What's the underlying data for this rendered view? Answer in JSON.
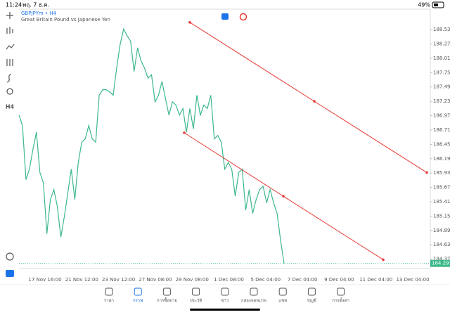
{
  "status_bar": {
    "time": "11:24",
    "date": "พฤ. 7 ธ.ค.",
    "battery": "49%"
  },
  "chart": {
    "type": "line",
    "symbol": "GBPJPYm • H4",
    "description": "Great Britain Pound vs Japanese Yen",
    "side_label": "H4",
    "color": "#3cb88a",
    "ylim": [
      184.2,
      188.9
    ],
    "yticks": [
      {
        "value": 188.53,
        "label": "188.530"
      },
      {
        "value": 188.27,
        "label": "188.270"
      },
      {
        "value": 188.01,
        "label": "188.010"
      },
      {
        "value": 187.75,
        "label": "187.750"
      },
      {
        "value": 187.49,
        "label": "187.490"
      },
      {
        "value": 187.23,
        "label": "187.230"
      },
      {
        "value": 186.97,
        "label": "186.970"
      },
      {
        "value": 186.71,
        "label": "186.710"
      },
      {
        "value": 186.45,
        "label": "186.450"
      },
      {
        "value": 186.19,
        "label": "186.190"
      },
      {
        "value": 185.93,
        "label": "185.930"
      },
      {
        "value": 185.67,
        "label": "185.670"
      },
      {
        "value": 185.41,
        "label": "185.410"
      },
      {
        "value": 185.15,
        "label": "185.150"
      },
      {
        "value": 184.89,
        "label": "184.890"
      },
      {
        "value": 184.63,
        "label": "184.630"
      },
      {
        "value": 184.37,
        "label": "184.370"
      }
    ],
    "xlabels": [
      "17 Nov 16:00",
      "21 Nov 12:00",
      "23 Nov 12:00",
      "27 Nov 08:00",
      "29 Nov 08:00",
      "1 Dec 08:00",
      "5 Dec 04:00",
      "7 Dec 04:00",
      "9 Dec 04:00",
      "11 Dec 04:00",
      "13 Dec 04:00"
    ],
    "prices": [
      186.98,
      186.79,
      185.81,
      186.0,
      186.36,
      186.67,
      185.94,
      185.75,
      184.83,
      185.45,
      185.63,
      185.32,
      184.77,
      185.14,
      185.57,
      186.0,
      185.45,
      186.12,
      186.49,
      186.55,
      186.79,
      186.55,
      186.49,
      187.34,
      187.44,
      187.44,
      187.4,
      187.34,
      187.83,
      188.26,
      188.54,
      188.42,
      188.32,
      187.77,
      188.2,
      187.96,
      187.83,
      187.65,
      187.71,
      187.22,
      187.34,
      187.59,
      187.28,
      186.98,
      187.22,
      187.16,
      186.98,
      187.1,
      186.67,
      187.1,
      186.73,
      187.34,
      186.98,
      187.16,
      187.1,
      187.34,
      186.55,
      186.61,
      186.49,
      186.0,
      186.12,
      186.0,
      185.51,
      185.94,
      186.0,
      185.26,
      185.63,
      185.2,
      185.45,
      185.63,
      185.69,
      185.39,
      185.63,
      185.39,
      185.2,
      184.71,
      184.29
    ],
    "last_price": {
      "value": 184.293,
      "label": "184.293"
    },
    "trendlines": [
      {
        "color": "#e53935",
        "prices": [
          188.66,
          187.23,
          185.94
        ]
      },
      {
        "color": "#e53935",
        "prices": [
          186.66,
          185.51,
          184.36
        ]
      }
    ]
  },
  "tabs": [
    "ราคา",
    "กราฟ",
    "การซื้อขาย",
    "ประวัติ",
    "ข่าว",
    "กล่องจดหมาย",
    "แชท",
    "บัญชี",
    "การตั้งค่า"
  ]
}
